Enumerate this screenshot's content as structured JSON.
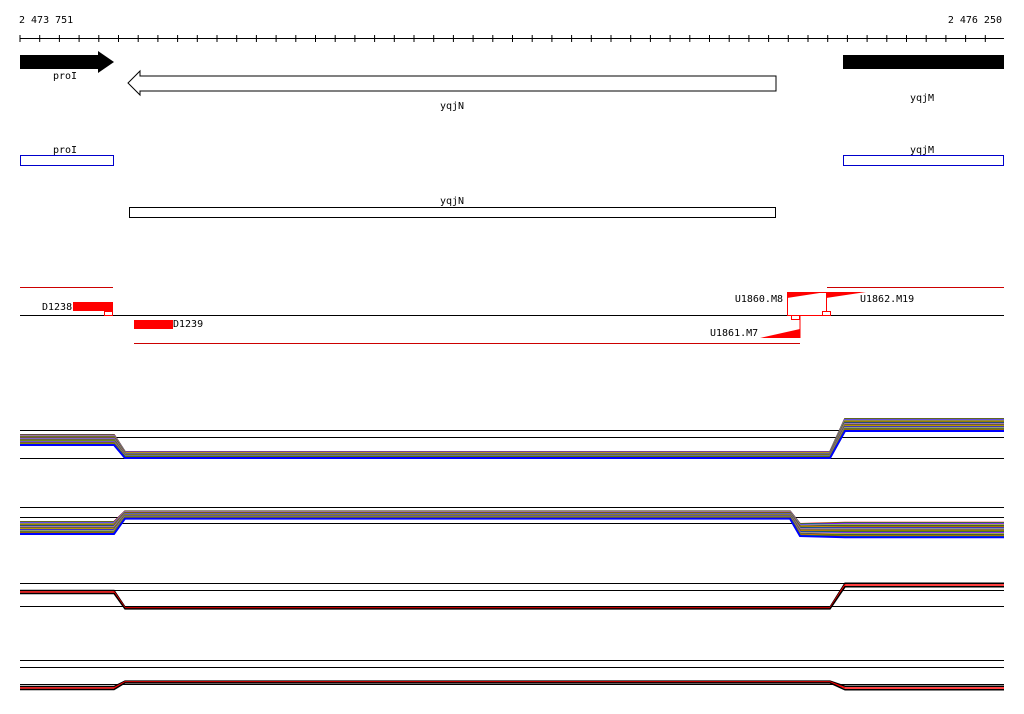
{
  "coords": {
    "start": "2 473 751",
    "end": "2 476 250"
  },
  "genes_track1": [
    {
      "name": "proI",
      "strand": "+"
    },
    {
      "name": "yqjN",
      "strand": "-"
    },
    {
      "name": "yqjM",
      "strand": "+"
    }
  ],
  "genes_track2": [
    {
      "name": "proI"
    },
    {
      "name": "yqjN"
    },
    {
      "name": "yqjM"
    }
  ],
  "features": [
    "D1238",
    "D1239",
    "U1860.M8",
    "U1862.M19",
    "U1861.M7"
  ],
  "colors": {
    "feature": "#ff0000",
    "cds_outline": "#0000cc",
    "profile_palette": [
      "#ff0000",
      "#00cc00",
      "#0000ff",
      "#ff00ff",
      "#00cccc",
      "#ffaa00",
      "#888888",
      "#000000",
      "#aaff00"
    ]
  }
}
